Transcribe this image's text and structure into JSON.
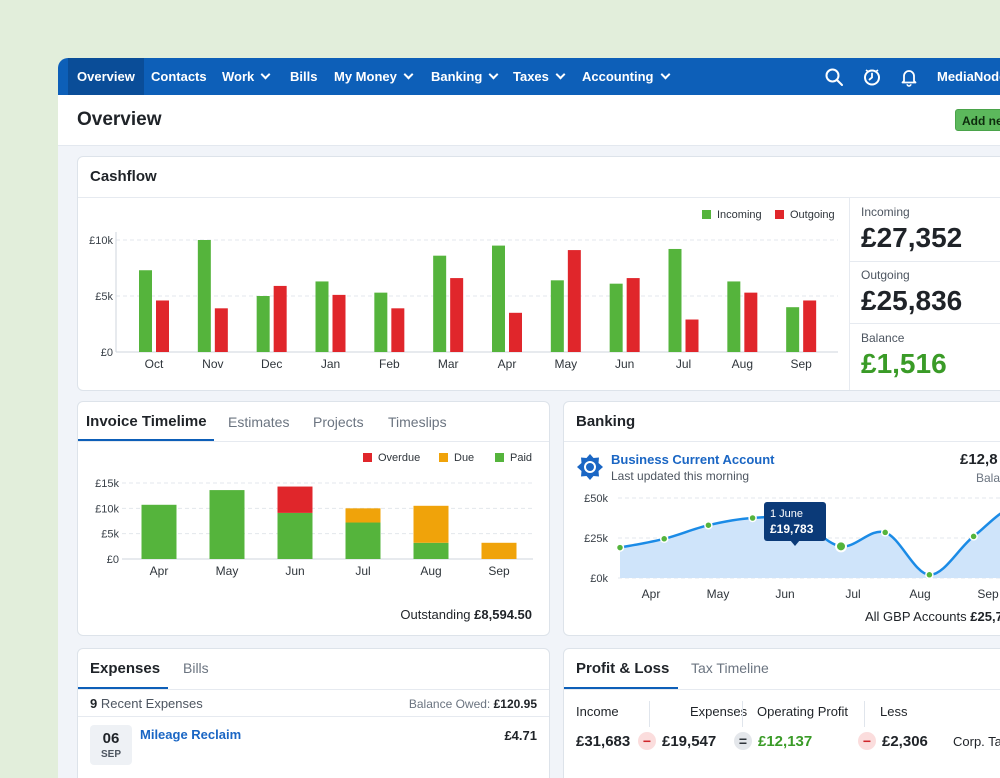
{
  "nav": {
    "items": [
      {
        "label": "Overview",
        "dropdown": false,
        "active": true
      },
      {
        "label": "Contacts",
        "dropdown": false
      },
      {
        "label": "Work",
        "dropdown": true
      },
      {
        "label": "Bills",
        "dropdown": false
      },
      {
        "label": "My Money",
        "dropdown": true
      },
      {
        "label": "Banking",
        "dropdown": true
      },
      {
        "label": "Taxes",
        "dropdown": true
      },
      {
        "label": "Accounting",
        "dropdown": true
      }
    ],
    "user": "MediaNode",
    "icons": [
      "search-icon",
      "clock-icon",
      "bell-icon"
    ]
  },
  "page": {
    "title": "Overview",
    "add_button": "Add ne"
  },
  "cashflow": {
    "title": "Cashflow",
    "legend": {
      "incoming": "Incoming",
      "outgoing": "Outgoing"
    },
    "stats": {
      "incoming_label": "Incoming",
      "incoming_value": "£27,352",
      "outgoing_label": "Outgoing",
      "outgoing_value": "£25,836",
      "balance_label": "Balance",
      "balance_value": "£1,516"
    }
  },
  "invoice": {
    "tabs": [
      "Invoice Timelime",
      "Estimates",
      "Projects",
      "Timeslips"
    ],
    "legend": {
      "overdue": "Overdue",
      "due": "Due",
      "paid": "Paid"
    },
    "outstanding_label": "Outstanding",
    "outstanding_value": "£8,594.50"
  },
  "banking": {
    "title": "Banking",
    "account_name": "Business Current Account",
    "updated": "Last updated this morning",
    "balance": "£12,8",
    "balance_sub": "Balan",
    "tooltip": {
      "date": "1 June",
      "value": "£19,783"
    },
    "footer_label": "All GBP Accounts",
    "footer_value": "£25,7"
  },
  "expenses": {
    "tabs": [
      "Expenses",
      "Bills"
    ],
    "count": "9",
    "count_label": "Recent Expenses",
    "balance_owed_label": "Balance Owed:",
    "balance_owed_value": "£120.95",
    "item": {
      "day": "06",
      "month": "SEP",
      "title": "Mileage Reclaim",
      "amount": "£4.71"
    }
  },
  "pnl": {
    "tabs": [
      "Profit & Loss",
      "Tax Timeline"
    ],
    "columns": [
      "Income",
      "Expenses",
      "Operating Profit",
      "Less"
    ],
    "values": {
      "income": "£31,683",
      "expenses": "£19,547",
      "profit": "£12,137",
      "less": "£2,306",
      "less_note": "Corp. Tax (e"
    },
    "operators": [
      "−",
      "−",
      "=",
      "−"
    ]
  },
  "chart_data": [
    {
      "type": "bar",
      "title": "Cashflow",
      "categories": [
        "Oct",
        "Nov",
        "Dec",
        "Jan",
        "Feb",
        "Mar",
        "Apr",
        "May",
        "Jun",
        "Jul",
        "Aug",
        "Sep"
      ],
      "series": [
        {
          "name": "Incoming",
          "color": "#55b43c",
          "values": [
            7300,
            10000,
            5000,
            6300,
            5300,
            8600,
            9500,
            6400,
            6100,
            9200,
            6300,
            4000
          ]
        },
        {
          "name": "Outgoing",
          "color": "#e0262b",
          "values": [
            4600,
            3900,
            5900,
            5100,
            3900,
            6600,
            3500,
            9100,
            6600,
            2900,
            5300,
            4600
          ]
        }
      ],
      "yticks": [
        "£0",
        "£5k",
        "£10k"
      ],
      "ylim": [
        0,
        10000
      ],
      "grid": true,
      "legend": "top-right"
    },
    {
      "type": "bar",
      "stacked": true,
      "title": "Invoice Timelime",
      "categories": [
        "Apr",
        "May",
        "Jun",
        "Jul",
        "Aug",
        "Sep"
      ],
      "series": [
        {
          "name": "Paid",
          "color": "#55b43c",
          "values": [
            10700,
            13600,
            9100,
            7200,
            3200,
            0
          ]
        },
        {
          "name": "Due",
          "color": "#f0a30a",
          "values": [
            0,
            0,
            0,
            2800,
            7300,
            3200
          ]
        },
        {
          "name": "Overdue",
          "color": "#e0262b",
          "values": [
            0,
            0,
            5200,
            0,
            0,
            0
          ]
        }
      ],
      "yticks": [
        "£0",
        "£5k",
        "£10k",
        "£15k"
      ],
      "ylim": [
        0,
        15000
      ],
      "grid": true,
      "legend": "top-right"
    },
    {
      "type": "area",
      "title": "Banking",
      "categories": [
        "Apr",
        "May",
        "Jun",
        "Jul",
        "Aug",
        "Sep"
      ],
      "x": [
        0,
        1,
        2,
        3,
        4,
        5,
        6,
        7,
        8,
        9,
        10,
        11
      ],
      "values": [
        19000,
        24500,
        33000,
        37500,
        36500,
        19783,
        28500,
        2000,
        26000,
        44000,
        20000,
        10000
      ],
      "yticks": [
        "£0k",
        "£25k",
        "£50k"
      ],
      "ylim": [
        0,
        50000
      ],
      "grid": true
    }
  ]
}
